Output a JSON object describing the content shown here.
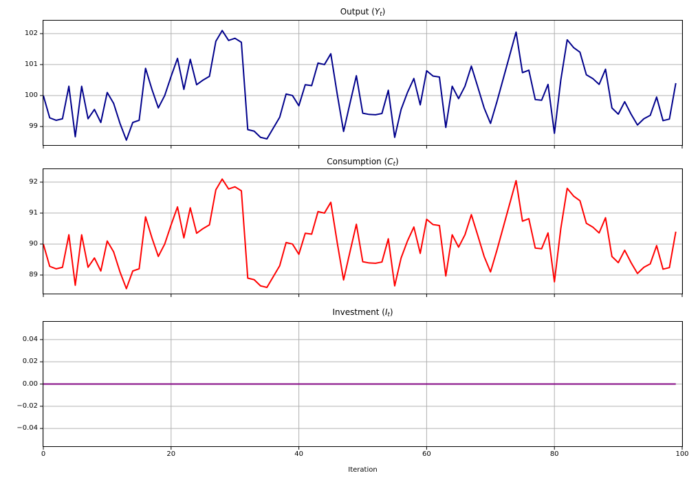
{
  "figure": {
    "background": "#ffffff",
    "grid_color": "#b0b0b0",
    "spine_color": "#000000"
  },
  "x_axis": {
    "label": "Iteration",
    "min": 0,
    "max": 100,
    "ticks": [
      {
        "v": 0,
        "label": "0"
      },
      {
        "v": 20,
        "label": "20"
      },
      {
        "v": 40,
        "label": "40"
      },
      {
        "v": 60,
        "label": "60"
      },
      {
        "v": 80,
        "label": "80"
      },
      {
        "v": 100,
        "label": "100"
      }
    ]
  },
  "chart_data": [
    {
      "type": "line",
      "series_name": "output-line",
      "title": {
        "prefix": "Output (",
        "var": "Y",
        "sub": "t",
        "suffix": ")"
      },
      "color": "#00008B",
      "ylim": [
        98.4,
        102.42
      ],
      "grid": true,
      "x_start": 0,
      "x_step": 1,
      "yticks": [
        {
          "v": 99,
          "label": "99"
        },
        {
          "v": 100,
          "label": "100"
        },
        {
          "v": 101,
          "label": "101"
        },
        {
          "v": 102,
          "label": "102"
        }
      ],
      "values": [
        100.0,
        99.28,
        99.2,
        99.25,
        100.3,
        98.67,
        100.3,
        99.25,
        99.55,
        99.13,
        100.1,
        99.75,
        99.1,
        98.56,
        99.13,
        99.2,
        100.88,
        100.2,
        99.6,
        100.0,
        100.62,
        101.2,
        100.2,
        101.17,
        100.35,
        100.5,
        100.62,
        101.75,
        102.1,
        101.78,
        101.85,
        101.72,
        98.9,
        98.85,
        98.65,
        98.6,
        98.95,
        99.3,
        100.05,
        100.0,
        99.67,
        100.35,
        100.32,
        101.05,
        101.0,
        101.35,
        100.05,
        98.84,
        99.75,
        100.64,
        99.43,
        99.39,
        99.38,
        99.42,
        100.17,
        98.65,
        99.55,
        100.1,
        100.55,
        99.7,
        100.8,
        100.63,
        100.6,
        98.97,
        100.3,
        99.9,
        100.3,
        100.95,
        100.28,
        99.6,
        99.1,
        99.8,
        100.55,
        101.3,
        102.05,
        100.74,
        100.82,
        99.87,
        99.85,
        100.36,
        98.78,
        100.5,
        101.8,
        101.55,
        101.4,
        100.67,
        100.55,
        100.36,
        100.85,
        99.6,
        99.4,
        99.8,
        99.4,
        99.05,
        99.25,
        99.36,
        99.95,
        99.19,
        99.24,
        100.4
      ]
    },
    {
      "type": "line",
      "series_name": "consumption-line",
      "title": {
        "prefix": "Consumption (",
        "var": "C",
        "sub": "t",
        "suffix": ")"
      },
      "color": "#FF0000",
      "ylim": [
        88.4,
        92.42
      ],
      "grid": true,
      "x_start": 0,
      "x_step": 1,
      "yticks": [
        {
          "v": 89,
          "label": "89"
        },
        {
          "v": 90,
          "label": "90"
        },
        {
          "v": 91,
          "label": "91"
        },
        {
          "v": 92,
          "label": "92"
        }
      ],
      "values": [
        90.0,
        89.28,
        89.2,
        89.25,
        90.3,
        88.67,
        90.3,
        89.25,
        89.55,
        89.13,
        90.1,
        89.75,
        89.1,
        88.56,
        89.13,
        89.2,
        90.88,
        90.2,
        89.6,
        90.0,
        90.62,
        91.2,
        90.2,
        91.17,
        90.35,
        90.5,
        90.62,
        91.75,
        92.1,
        91.78,
        91.85,
        91.72,
        88.9,
        88.85,
        88.65,
        88.6,
        88.95,
        89.3,
        90.05,
        90.0,
        89.67,
        90.35,
        90.32,
        91.05,
        91.0,
        91.35,
        90.05,
        88.84,
        89.75,
        90.64,
        89.43,
        89.39,
        89.38,
        89.42,
        90.17,
        88.65,
        89.55,
        90.1,
        90.55,
        89.7,
        90.8,
        90.63,
        90.6,
        88.97,
        90.3,
        89.9,
        90.3,
        90.95,
        90.28,
        89.6,
        89.1,
        89.8,
        90.55,
        91.3,
        92.05,
        90.74,
        90.82,
        89.87,
        89.85,
        90.36,
        88.78,
        90.5,
        91.8,
        91.55,
        91.4,
        90.67,
        90.55,
        90.36,
        90.85,
        89.6,
        89.4,
        89.8,
        89.4,
        89.05,
        89.25,
        89.36,
        89.95,
        89.19,
        89.24,
        90.4
      ]
    },
    {
      "type": "line",
      "series_name": "investment-line",
      "title": {
        "prefix": "Investment (",
        "var": "I",
        "sub": "t",
        "suffix": ")"
      },
      "color": "#800080",
      "ylim": [
        -0.056,
        0.056
      ],
      "grid": true,
      "x_start": 0,
      "x_step": 1,
      "yticks": [
        {
          "v": -0.04,
          "label": "−0.04"
        },
        {
          "v": -0.02,
          "label": "−0.02"
        },
        {
          "v": 0.0,
          "label": "0.00"
        },
        {
          "v": 0.02,
          "label": "0.02"
        },
        {
          "v": 0.04,
          "label": "0.04"
        }
      ],
      "values": [
        0,
        0,
        0,
        0,
        0,
        0,
        0,
        0,
        0,
        0,
        0,
        0,
        0,
        0,
        0,
        0,
        0,
        0,
        0,
        0,
        0,
        0,
        0,
        0,
        0,
        0,
        0,
        0,
        0,
        0,
        0,
        0,
        0,
        0,
        0,
        0,
        0,
        0,
        0,
        0,
        0,
        0,
        0,
        0,
        0,
        0,
        0,
        0,
        0,
        0,
        0,
        0,
        0,
        0,
        0,
        0,
        0,
        0,
        0,
        0,
        0,
        0,
        0,
        0,
        0,
        0,
        0,
        0,
        0,
        0,
        0,
        0,
        0,
        0,
        0,
        0,
        0,
        0,
        0,
        0,
        0,
        0,
        0,
        0,
        0,
        0,
        0,
        0,
        0,
        0,
        0,
        0,
        0,
        0,
        0,
        0,
        0,
        0,
        0,
        0
      ]
    }
  ]
}
